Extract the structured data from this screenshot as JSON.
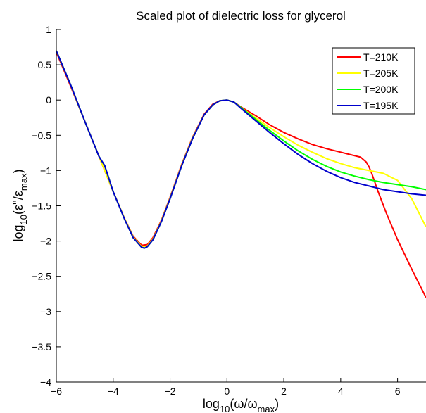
{
  "chart_data": {
    "type": "line",
    "title": "Scaled plot of dielectric loss for glycerol",
    "xlabel": {
      "pre": "log",
      "sub1": "10",
      "mid": "(ω/ω",
      "sub2": "max",
      "post": ")"
    },
    "ylabel": {
      "pre": "log",
      "sub1": "10",
      "mid": "(ε''/ε",
      "sub2": "max",
      "post": ")"
    },
    "xlim": [
      -6,
      7
    ],
    "ylim": [
      -4,
      1
    ],
    "xticks": [
      -6,
      -4,
      -2,
      0,
      2,
      4,
      6
    ],
    "yticks": [
      1,
      0.5,
      0,
      -0.5,
      -1,
      -1.5,
      -2,
      -2.5,
      -3,
      -3.5,
      -4
    ],
    "xtick_labels": [
      "−6",
      "−4",
      "−2",
      "0",
      "2",
      "4",
      "6"
    ],
    "ytick_labels": [
      "1",
      "0.5",
      "0",
      "−0.5",
      "−1",
      "−1.5",
      "−2",
      "−2.5",
      "−3",
      "−3.5",
      "−4"
    ],
    "grid": false,
    "legend_position": "top-right",
    "series": [
      {
        "name": "T=210K",
        "color": "#ff0000",
        "x": [
          -6.0,
          -5.5,
          -5.0,
          -4.5,
          -4.0,
          -3.6,
          -3.3,
          -3.0,
          -2.8,
          -2.6,
          -2.3,
          -2.0,
          -1.6,
          -1.2,
          -0.8,
          -0.5,
          -0.25,
          0.0,
          0.25,
          0.5,
          1.0,
          1.5,
          2.0,
          2.5,
          3.0,
          3.5,
          4.0,
          4.4,
          4.7,
          4.9,
          5.0,
          5.1,
          5.3,
          5.6,
          6.0,
          6.5,
          7.0
        ],
        "y": [
          0.68,
          0.2,
          -0.3,
          -0.8,
          -1.3,
          -1.68,
          -1.93,
          -2.06,
          -2.05,
          -1.95,
          -1.7,
          -1.38,
          -0.92,
          -0.52,
          -0.2,
          -0.06,
          -0.01,
          0.0,
          -0.03,
          -0.1,
          -0.22,
          -0.35,
          -0.46,
          -0.55,
          -0.63,
          -0.69,
          -0.74,
          -0.78,
          -0.81,
          -0.88,
          -0.95,
          -1.05,
          -1.28,
          -1.6,
          -1.98,
          -2.4,
          -2.8
        ]
      },
      {
        "name": "T=205K",
        "color": "#ffff00",
        "x": [
          -6.0,
          -5.5,
          -5.25,
          -5.0,
          -4.5,
          -4.0,
          -3.6,
          -3.3,
          -3.0,
          -2.8,
          -2.6,
          -2.3,
          -2.0,
          -1.6,
          -1.2,
          -0.8,
          -0.5,
          -0.25,
          0.0,
          0.25,
          0.5,
          1.0,
          1.5,
          2.0,
          2.5,
          3.0,
          3.5,
          4.0,
          4.5,
          5.0,
          5.5,
          6.0,
          6.5,
          7.0
        ],
        "y": [
          0.7,
          0.22,
          -0.05,
          -0.3,
          -0.8,
          -1.3,
          -1.68,
          -1.94,
          -2.08,
          -2.07,
          -1.97,
          -1.71,
          -1.39,
          -0.93,
          -0.53,
          -0.21,
          -0.07,
          -0.01,
          0.0,
          -0.03,
          -0.11,
          -0.25,
          -0.39,
          -0.52,
          -0.64,
          -0.74,
          -0.83,
          -0.9,
          -0.96,
          -1.0,
          -1.04,
          -1.14,
          -1.4,
          -1.8
        ]
      },
      {
        "name": "T=200K",
        "color": "#00ff00",
        "x": [
          -6.0,
          -5.5,
          -5.25,
          -5.0,
          -4.5,
          -4.3,
          -4.0,
          -3.6,
          -3.3,
          -3.0,
          -2.9,
          -2.8,
          -2.6,
          -2.3,
          -2.0,
          -1.6,
          -1.2,
          -0.8,
          -0.5,
          -0.25,
          0.0,
          0.25,
          0.5,
          1.0,
          1.5,
          2.0,
          2.5,
          3.0,
          3.5,
          4.0,
          4.5,
          5.0,
          5.5,
          6.0,
          6.5,
          7.0
        ],
        "y": [
          0.7,
          0.22,
          -0.04,
          -0.3,
          -0.8,
          -0.93,
          -1.3,
          -1.69,
          -1.95,
          -2.09,
          -2.1,
          -2.08,
          -1.98,
          -1.72,
          -1.4,
          -0.94,
          -0.54,
          -0.21,
          -0.07,
          -0.01,
          0.0,
          -0.03,
          -0.11,
          -0.27,
          -0.43,
          -0.58,
          -0.72,
          -0.84,
          -0.94,
          -1.02,
          -1.08,
          -1.13,
          -1.17,
          -1.2,
          -1.23,
          -1.27
        ]
      },
      {
        "name": "T=195K",
        "color": "#0000cc",
        "x": [
          -6.0,
          -5.5,
          -5.0,
          -4.5,
          -4.3,
          -4.0,
          -3.6,
          -3.3,
          -3.0,
          -2.9,
          -2.8,
          -2.6,
          -2.3,
          -2.0,
          -1.6,
          -1.2,
          -0.8,
          -0.5,
          -0.25,
          0.0,
          0.25,
          0.5,
          1.0,
          1.5,
          2.0,
          2.5,
          3.0,
          3.5,
          4.0,
          4.5,
          5.0,
          5.5,
          6.0,
          6.5,
          7.0
        ],
        "y": [
          0.7,
          0.22,
          -0.3,
          -0.8,
          -0.93,
          -1.3,
          -1.69,
          -1.95,
          -2.09,
          -2.1,
          -2.08,
          -1.98,
          -1.72,
          -1.4,
          -0.94,
          -0.54,
          -0.21,
          -0.07,
          -0.01,
          0.0,
          -0.03,
          -0.12,
          -0.29,
          -0.46,
          -0.62,
          -0.77,
          -0.9,
          -1.01,
          -1.1,
          -1.17,
          -1.22,
          -1.27,
          -1.3,
          -1.33,
          -1.35
        ]
      }
    ]
  }
}
